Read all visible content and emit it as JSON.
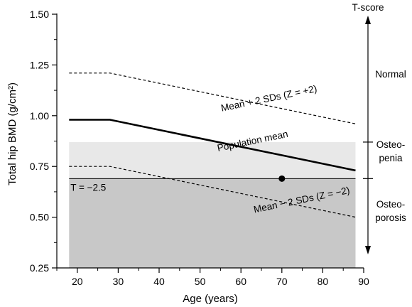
{
  "chart_data": {
    "type": "line",
    "xlabel": "Age (years)",
    "ylabel": "Total hip BMD (g/cm²)",
    "xlim": [
      15,
      90
    ],
    "ylim": [
      0.25,
      1.5
    ],
    "x_ticks": [
      20,
      30,
      40,
      50,
      60,
      70,
      80,
      90
    ],
    "y_ticks": [
      0.25,
      0.5,
      0.75,
      1.0,
      1.25,
      1.5
    ],
    "x_tick_labels": [
      "20",
      "30",
      "40",
      "50",
      "60",
      "70",
      "80",
      "90"
    ],
    "y_tick_labels": [
      "0.25",
      "0.50",
      "0.75",
      "1.00",
      "1.25",
      "1.50"
    ],
    "series": [
      {
        "name": "Mean + 2 SDs (Z = +2)",
        "style": "dashed",
        "x": [
          18,
          28,
          88
        ],
        "y": [
          1.21,
          1.21,
          0.96
        ]
      },
      {
        "name": "Population mean",
        "style": "solid-bold",
        "x": [
          18,
          28,
          88
        ],
        "y": [
          0.98,
          0.98,
          0.73
        ]
      },
      {
        "name": "Mean − 2 SDs (Z = −2)",
        "style": "dashed",
        "x": [
          18,
          28,
          88
        ],
        "y": [
          0.75,
          0.75,
          0.5
        ]
      }
    ],
    "threshold": {
      "label": "T = −2.5",
      "y": 0.69
    },
    "regions": [
      {
        "name": "osteopenia",
        "y": [
          0.69,
          0.87
        ],
        "color": "#e8e8e8"
      },
      {
        "name": "osteoporosis",
        "y": [
          0.25,
          0.69
        ],
        "color": "#c8c8c8"
      }
    ],
    "point": {
      "x": 70,
      "y": 0.69
    },
    "tscore": {
      "title": "T-score",
      "labels": [
        "Normal",
        "Osteo-\npenia",
        "Osteo-\nporosis"
      ]
    }
  }
}
